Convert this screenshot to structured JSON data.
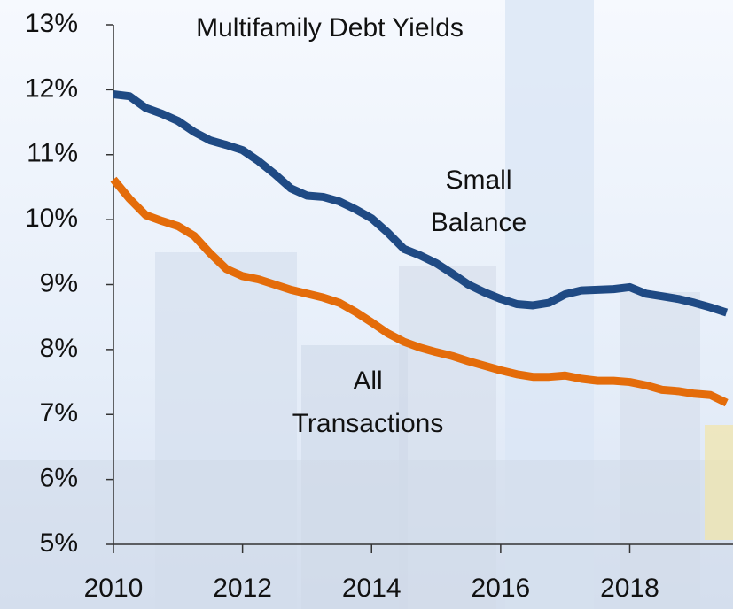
{
  "chart_data": {
    "type": "line",
    "title": "Multifamily Debt Yields",
    "xlim": [
      2010,
      2019.6
    ],
    "xticks": [
      2010,
      2012,
      2014,
      2016,
      2018
    ],
    "ylim": [
      5,
      13
    ],
    "yticks": [
      {
        "value": 5,
        "label": "5%"
      },
      {
        "value": 6,
        "label": "6%"
      },
      {
        "value": 7,
        "label": "7%"
      },
      {
        "value": 8,
        "label": "8%"
      },
      {
        "value": 9,
        "label": "9%"
      },
      {
        "value": 10,
        "label": "10%"
      },
      {
        "value": 11,
        "label": "11%"
      },
      {
        "value": 12,
        "label": "12%"
      },
      {
        "value": 13,
        "label": "13%"
      }
    ],
    "x": [
      2010,
      2010.25,
      2010.5,
      2010.75,
      2011,
      2011.25,
      2011.5,
      2011.75,
      2012,
      2012.25,
      2012.5,
      2012.75,
      2013,
      2013.25,
      2013.5,
      2013.75,
      2014,
      2014.25,
      2014.5,
      2014.75,
      2015,
      2015.25,
      2015.5,
      2015.75,
      2016,
      2016.25,
      2016.5,
      2016.75,
      2017,
      2017.25,
      2017.5,
      2017.75,
      2018,
      2018.25,
      2018.5,
      2018.75,
      2019,
      2019.25,
      2019.5
    ],
    "series": [
      {
        "label": [
          "Small",
          "Balance"
        ],
        "color": "#1f4a84",
        "values": [
          11.93,
          11.9,
          11.72,
          11.63,
          11.52,
          11.35,
          11.22,
          11.15,
          11.07,
          10.9,
          10.7,
          10.48,
          10.37,
          10.35,
          10.28,
          10.16,
          10.02,
          9.8,
          9.55,
          9.45,
          9.33,
          9.17,
          9.0,
          8.88,
          8.78,
          8.7,
          8.68,
          8.72,
          8.85,
          8.91,
          8.92,
          8.93,
          8.96,
          8.86,
          8.82,
          8.78,
          8.72,
          8.65,
          8.57
        ]
      },
      {
        "label": [
          "All",
          "Transactions"
        ],
        "color": "#e46c0a",
        "values": [
          10.62,
          10.32,
          10.07,
          9.98,
          9.9,
          9.75,
          9.48,
          9.24,
          9.13,
          9.08,
          9.0,
          8.92,
          8.86,
          8.8,
          8.72,
          8.58,
          8.42,
          8.25,
          8.12,
          8.03,
          7.96,
          7.9,
          7.82,
          7.75,
          7.68,
          7.62,
          7.58,
          7.58,
          7.6,
          7.55,
          7.52,
          7.52,
          7.5,
          7.45,
          7.38,
          7.36,
          7.32,
          7.3,
          7.18
        ]
      }
    ]
  }
}
